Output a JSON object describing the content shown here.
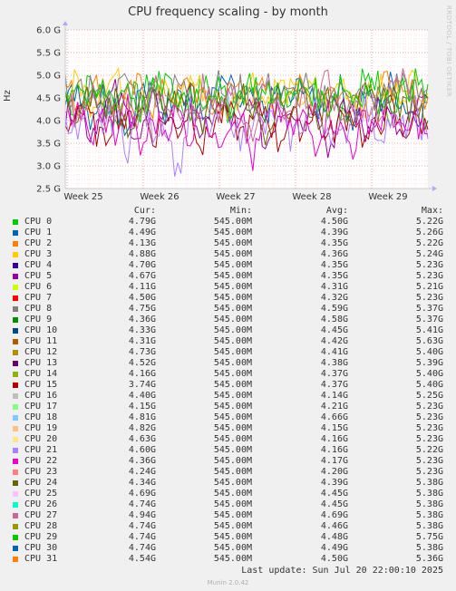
{
  "title": "CPU frequency scaling - by month",
  "side_label": "RRDTOOL / TOBI OETIKER",
  "footer": {
    "last_update": "Last update: Sun Jul 20 22:00:10 2025",
    "version": "Munin 2.0.42"
  },
  "legend_headers": {
    "cur": "Cur:",
    "min": "Min:",
    "avg": "Avg:",
    "max": "Max:"
  },
  "legend": [
    {
      "name": "CPU 0",
      "color": "#00cc00",
      "cur": "4.79G",
      "min": "545.00M",
      "avg": "4.50G",
      "max": "5.22G"
    },
    {
      "name": "CPU 1",
      "color": "#0066b3",
      "cur": "4.49G",
      "min": "545.00M",
      "avg": "4.39G",
      "max": "5.26G"
    },
    {
      "name": "CPU 2",
      "color": "#ff8000",
      "cur": "4.13G",
      "min": "545.00M",
      "avg": "4.35G",
      "max": "5.22G"
    },
    {
      "name": "CPU 3",
      "color": "#ffcc00",
      "cur": "4.88G",
      "min": "545.00M",
      "avg": "4.36G",
      "max": "5.24G"
    },
    {
      "name": "CPU 4",
      "color": "#330099",
      "cur": "4.70G",
      "min": "545.00M",
      "avg": "4.35G",
      "max": "5.23G"
    },
    {
      "name": "CPU 5",
      "color": "#990099",
      "cur": "4.67G",
      "min": "545.00M",
      "avg": "4.35G",
      "max": "5.23G"
    },
    {
      "name": "CPU 6",
      "color": "#ccff00",
      "cur": "4.11G",
      "min": "545.00M",
      "avg": "4.31G",
      "max": "5.21G"
    },
    {
      "name": "CPU 7",
      "color": "#ff0000",
      "cur": "4.50G",
      "min": "545.00M",
      "avg": "4.32G",
      "max": "5.23G"
    },
    {
      "name": "CPU 8",
      "color": "#808080",
      "cur": "4.75G",
      "min": "545.00M",
      "avg": "4.59G",
      "max": "5.37G"
    },
    {
      "name": "CPU 9",
      "color": "#008f00",
      "cur": "4.36G",
      "min": "545.00M",
      "avg": "4.58G",
      "max": "5.37G"
    },
    {
      "name": "CPU 10",
      "color": "#00487d",
      "cur": "4.33G",
      "min": "545.00M",
      "avg": "4.45G",
      "max": "5.41G"
    },
    {
      "name": "CPU 11",
      "color": "#b35a00",
      "cur": "4.31G",
      "min": "545.00M",
      "avg": "4.42G",
      "max": "5.63G"
    },
    {
      "name": "CPU 12",
      "color": "#b38f00",
      "cur": "4.73G",
      "min": "545.00M",
      "avg": "4.41G",
      "max": "5.40G"
    },
    {
      "name": "CPU 13",
      "color": "#6b006b",
      "cur": "4.52G",
      "min": "545.00M",
      "avg": "4.38G",
      "max": "5.39G"
    },
    {
      "name": "CPU 14",
      "color": "#8fb300",
      "cur": "4.16G",
      "min": "545.00M",
      "avg": "4.37G",
      "max": "5.40G"
    },
    {
      "name": "CPU 15",
      "color": "#b30000",
      "cur": "3.74G",
      "min": "545.00M",
      "avg": "4.37G",
      "max": "5.40G"
    },
    {
      "name": "CPU 16",
      "color": "#bebebe",
      "cur": "4.40G",
      "min": "545.00M",
      "avg": "4.14G",
      "max": "5.25G"
    },
    {
      "name": "CPU 17",
      "color": "#80ff80",
      "cur": "4.15G",
      "min": "545.00M",
      "avg": "4.21G",
      "max": "5.23G"
    },
    {
      "name": "CPU 18",
      "color": "#80c9ff",
      "cur": "4.81G",
      "min": "545.00M",
      "avg": "4.66G",
      "max": "5.23G"
    },
    {
      "name": "CPU 19",
      "color": "#ffc080",
      "cur": "4.82G",
      "min": "545.00M",
      "avg": "4.15G",
      "max": "5.23G"
    },
    {
      "name": "CPU 20",
      "color": "#ffe680",
      "cur": "4.63G",
      "min": "545.00M",
      "avg": "4.16G",
      "max": "5.23G"
    },
    {
      "name": "CPU 21",
      "color": "#aa80ff",
      "cur": "4.60G",
      "min": "545.00M",
      "avg": "4.16G",
      "max": "5.22G"
    },
    {
      "name": "CPU 22",
      "color": "#ee00cc",
      "cur": "4.36G",
      "min": "545.00M",
      "avg": "4.17G",
      "max": "5.23G"
    },
    {
      "name": "CPU 23",
      "color": "#ff8080",
      "cur": "4.24G",
      "min": "545.00M",
      "avg": "4.20G",
      "max": "5.23G"
    },
    {
      "name": "CPU 24",
      "color": "#666600",
      "cur": "4.34G",
      "min": "545.00M",
      "avg": "4.39G",
      "max": "5.38G"
    },
    {
      "name": "CPU 25",
      "color": "#ffbfff",
      "cur": "4.69G",
      "min": "545.00M",
      "avg": "4.45G",
      "max": "5.38G"
    },
    {
      "name": "CPU 26",
      "color": "#00ffcc",
      "cur": "4.74G",
      "min": "545.00M",
      "avg": "4.45G",
      "max": "5.38G"
    },
    {
      "name": "CPU 27",
      "color": "#cc6699",
      "cur": "4.94G",
      "min": "545.00M",
      "avg": "4.69G",
      "max": "5.38G"
    },
    {
      "name": "CPU 28",
      "color": "#999900",
      "cur": "4.74G",
      "min": "545.00M",
      "avg": "4.46G",
      "max": "5.38G"
    },
    {
      "name": "CPU 29",
      "color": "#00cc00",
      "cur": "4.74G",
      "min": "545.00M",
      "avg": "4.48G",
      "max": "5.75G"
    },
    {
      "name": "CPU 30",
      "color": "#0066b3",
      "cur": "4.74G",
      "min": "545.00M",
      "avg": "4.49G",
      "max": "5.38G"
    },
    {
      "name": "CPU 31",
      "color": "#ff8000",
      "cur": "4.54G",
      "min": "545.00M",
      "avg": "4.50G",
      "max": "5.36G"
    }
  ],
  "chart_data": {
    "type": "line",
    "title": "CPU frequency scaling - by month",
    "ylabel": "Hz",
    "ylim": [
      2.5,
      6.0
    ],
    "y_unit": "G",
    "yticks": [
      2.5,
      3.0,
      3.5,
      4.0,
      4.5,
      5.0,
      5.5,
      6.0
    ],
    "ytick_labels": [
      "2.5 G",
      "3.0 G",
      "3.5 G",
      "4.0 G",
      "4.5 G",
      "5.0 G",
      "5.5 G",
      "6.0 G"
    ],
    "xticks": [
      "Week 25",
      "Week 26",
      "Week 27",
      "Week 28",
      "Week 29"
    ],
    "grid": true,
    "series": [
      {
        "name": "CPU 0",
        "values": [
          4.6,
          4.2,
          4.9,
          4.5,
          3.9,
          4.7,
          4.4,
          5.0,
          4.3,
          4.6,
          4.1,
          4.8,
          4.5,
          4.2,
          4.9,
          4.4,
          4.0,
          4.7,
          4.5,
          4.3,
          4.8,
          4.6,
          4.1,
          4.5,
          4.9,
          4.4,
          4.2,
          4.7,
          4.5,
          4.8
        ]
      },
      {
        "name": "CPU 1",
        "values": [
          4.3,
          4.8,
          4.1,
          4.6,
          4.4,
          3.8,
          4.7,
          4.5,
          4.2,
          4.9,
          4.4,
          4.0,
          4.6,
          4.8,
          4.3,
          4.5,
          4.1,
          4.7,
          4.4,
          4.9,
          4.2,
          4.5,
          4.7,
          4.0,
          4.6,
          4.3,
          4.8,
          4.4,
          4.1,
          4.5
        ]
      },
      {
        "name": "CPU 2",
        "values": [
          4.8,
          4.4,
          4.6,
          4.9,
          4.2,
          4.5,
          4.8,
          4.3,
          4.7,
          4.5,
          4.9,
          4.4,
          4.2,
          4.6,
          4.8,
          4.5,
          4.7,
          4.3,
          4.9,
          4.6,
          4.4,
          4.8,
          4.5,
          4.7,
          4.3,
          4.6,
          4.9,
          4.4,
          4.7,
          4.5
        ]
      },
      {
        "name": "CPU 3",
        "values": [
          4.5,
          4.9,
          4.4,
          4.7,
          5.0,
          4.6,
          4.3,
          4.8,
          4.6,
          4.4,
          4.9,
          4.7,
          4.5,
          4.3,
          4.6,
          4.9,
          4.4,
          4.8,
          4.6,
          4.5,
          4.7,
          4.3,
          4.9,
          4.6,
          4.4,
          4.8,
          4.5,
          4.7,
          4.9,
          4.6
        ]
      },
      {
        "name": "CPU 5",
        "values": [
          4.0,
          4.5,
          3.7,
          4.3,
          4.6,
          4.1,
          3.6,
          4.4,
          4.2,
          3.9,
          4.5,
          3.5,
          4.3,
          4.1,
          3.8,
          4.6,
          3.4,
          4.2,
          4.4,
          3.9,
          4.5,
          3.3,
          4.1,
          4.3,
          3.7,
          4.4,
          4.0,
          3.6,
          4.2,
          4.5
        ]
      },
      {
        "name": "CPU 8",
        "values": [
          4.7,
          4.5,
          4.8,
          4.3,
          4.6,
          4.9,
          4.4,
          4.7,
          4.5,
          4.8,
          4.6,
          4.3,
          4.9,
          4.5,
          4.7,
          4.4,
          4.8,
          4.6,
          4.5,
          4.9,
          4.3,
          4.7,
          4.6,
          4.8,
          4.4,
          4.5,
          4.7,
          4.9,
          4.6,
          4.4
        ]
      },
      {
        "name": "CPU 15",
        "values": [
          3.8,
          4.3,
          4.0,
          3.5,
          4.2,
          3.9,
          4.4,
          3.6,
          4.1,
          3.8,
          4.3,
          3.4,
          4.0,
          4.2,
          3.7,
          3.9,
          4.3,
          3.5,
          4.1,
          3.8,
          4.4,
          3.6,
          4.0,
          4.2,
          3.5,
          3.9,
          4.3,
          3.7,
          4.1,
          3.8
        ]
      },
      {
        "name": "CPU 21",
        "values": [
          4.2,
          3.6,
          4.4,
          3.9,
          4.1,
          3.4,
          4.3,
          3.8,
          4.0,
          2.8,
          4.2,
          3.7,
          3.9,
          4.4,
          3.5,
          4.1,
          3.8,
          4.3,
          3.6,
          4.0,
          4.2,
          3.9,
          3.5,
          4.1,
          4.3,
          3.7,
          4.0,
          3.8,
          4.2,
          3.6
        ]
      },
      {
        "name": "CPU 22",
        "values": [
          3.9,
          4.4,
          3.5,
          4.1,
          3.7,
          4.3,
          3.3,
          4.0,
          3.8,
          4.2,
          3.6,
          4.4,
          3.4,
          4.0,
          4.2,
          3.1,
          3.9,
          4.3,
          3.7,
          4.1,
          3.5,
          4.2,
          3.8,
          3.4,
          4.1,
          3.9,
          4.3,
          3.6,
          4.0,
          3.7
        ]
      },
      {
        "name": "CPU 24",
        "values": [
          4.4,
          4.0,
          4.6,
          4.2,
          4.5,
          3.9,
          4.3,
          4.6,
          4.1,
          4.4,
          4.7,
          4.0,
          4.5,
          4.2,
          4.6,
          4.3,
          3.8,
          4.5,
          4.2,
          4.7,
          4.0,
          4.4,
          4.6,
          4.1,
          4.5,
          4.3,
          4.7,
          4.2,
          4.4,
          4.0
        ]
      },
      {
        "name": "CPU 27",
        "values": [
          4.5,
          4.1,
          4.7,
          3.8,
          4.4,
          4.6,
          4.0,
          4.8,
          4.3,
          4.5,
          3.9,
          4.7,
          4.2,
          4.6,
          4.4,
          3.7,
          4.8,
          4.5,
          4.1,
          4.6,
          4.3,
          4.9,
          4.0,
          4.5,
          4.7,
          4.2,
          4.6,
          4.9,
          4.4,
          4.7
        ]
      },
      {
        "name": "CPU 29",
        "values": [
          4.6,
          4.9,
          4.3,
          4.7,
          4.5,
          4.8,
          4.2,
          4.6,
          4.9,
          4.4,
          4.7,
          4.5,
          4.8,
          4.3,
          4.6,
          4.9,
          4.5,
          4.7,
          4.4,
          4.8,
          4.6,
          4.3,
          4.9,
          4.5,
          4.7,
          4.8,
          4.4,
          4.6,
          4.9,
          4.5
        ]
      }
    ]
  }
}
